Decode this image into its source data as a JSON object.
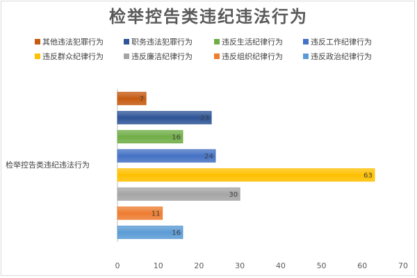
{
  "chart_data": {
    "type": "bar",
    "orientation": "horizontal",
    "title": "检举控告类违纪违法行为",
    "category": "检举控告类违纪违法行为",
    "xlim": [
      0,
      70
    ],
    "xticks": [
      0,
      10,
      20,
      30,
      40,
      50,
      60,
      70
    ],
    "grid": false,
    "legend_position": "top",
    "series": [
      {
        "name": "其他违法犯罪行为",
        "value": 7,
        "color": "#c55a11"
      },
      {
        "name": "职务违法犯罪行为",
        "value": 23,
        "color": "#2e5597"
      },
      {
        "name": "违反生活纪律行为",
        "value": 16,
        "color": "#70ad47"
      },
      {
        "name": "违反工作纪律行为",
        "value": 24,
        "color": "#4472c4"
      },
      {
        "name": "违反群众纪律行为",
        "value": 63,
        "color": "#ffc000"
      },
      {
        "name": "违反廉洁纪律行为",
        "value": 30,
        "color": "#a5a5a5"
      },
      {
        "name": "违反组织纪律行为",
        "value": 11,
        "color": "#ed7d31"
      },
      {
        "name": "违反政治纪律行为",
        "value": 16,
        "color": "#5b9bd5"
      }
    ]
  }
}
